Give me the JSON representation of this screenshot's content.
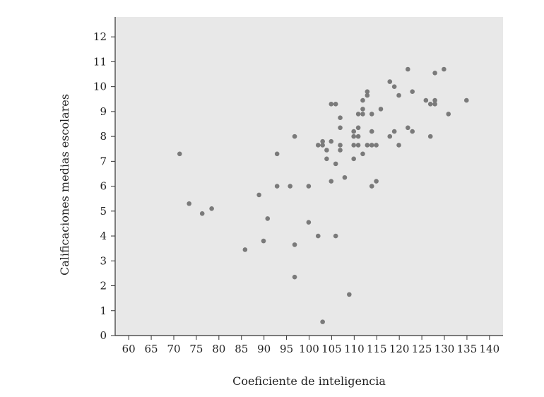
{
  "chart_data": {
    "type": "scatter",
    "title": "",
    "xlabel": "Coeficiente de inteligencia",
    "ylabel": "Calificaciones medias escolares",
    "xlim": [
      57,
      143
    ],
    "ylim": [
      0,
      12.8
    ],
    "xticks": [
      60,
      65,
      70,
      75,
      80,
      85,
      90,
      95,
      100,
      105,
      110,
      115,
      120,
      125,
      130,
      135,
      140
    ],
    "yticks": [
      0,
      1,
      2,
      3,
      4,
      5,
      6,
      7,
      8,
      9,
      10,
      11,
      12
    ],
    "grid": false,
    "legend": "none",
    "colors": {
      "plot_background": "#e8e8e8",
      "point": "#7a7a7a",
      "axis": "#333333"
    },
    "points": [
      {
        "x": 71.3,
        "y": 7.3
      },
      {
        "x": 73.4,
        "y": 5.3
      },
      {
        "x": 76.3,
        "y": 4.9
      },
      {
        "x": 78.4,
        "y": 5.1
      },
      {
        "x": 85.8,
        "y": 3.45
      },
      {
        "x": 88.9,
        "y": 5.65
      },
      {
        "x": 89.9,
        "y": 3.8
      },
      {
        "x": 90.8,
        "y": 4.7
      },
      {
        "x": 92.9,
        "y": 6.0
      },
      {
        "x": 92.9,
        "y": 7.3
      },
      {
        "x": 95.8,
        "y": 6.0
      },
      {
        "x": 96.8,
        "y": 8.0
      },
      {
        "x": 96.8,
        "y": 3.65
      },
      {
        "x": 96.8,
        "y": 2.35
      },
      {
        "x": 99.9,
        "y": 6.0
      },
      {
        "x": 99.9,
        "y": 4.55
      },
      {
        "x": 102.0,
        "y": 7.65
      },
      {
        "x": 102.0,
        "y": 4.0
      },
      {
        "x": 103.0,
        "y": 7.65
      },
      {
        "x": 103.0,
        "y": 7.8
      },
      {
        "x": 103.0,
        "y": 0.55
      },
      {
        "x": 103.9,
        "y": 7.45
      },
      {
        "x": 103.9,
        "y": 7.1
      },
      {
        "x": 104.9,
        "y": 9.3
      },
      {
        "x": 104.9,
        "y": 7.8
      },
      {
        "x": 104.9,
        "y": 6.2
      },
      {
        "x": 105.9,
        "y": 9.3
      },
      {
        "x": 105.9,
        "y": 6.9
      },
      {
        "x": 105.9,
        "y": 4.0
      },
      {
        "x": 106.9,
        "y": 8.75
      },
      {
        "x": 106.9,
        "y": 8.35
      },
      {
        "x": 106.9,
        "y": 7.65
      },
      {
        "x": 106.9,
        "y": 7.45
      },
      {
        "x": 107.9,
        "y": 6.35
      },
      {
        "x": 108.9,
        "y": 1.65
      },
      {
        "x": 109.9,
        "y": 8.2
      },
      {
        "x": 109.9,
        "y": 8.0
      },
      {
        "x": 109.9,
        "y": 7.65
      },
      {
        "x": 109.9,
        "y": 7.1
      },
      {
        "x": 110.9,
        "y": 8.9
      },
      {
        "x": 110.9,
        "y": 8.35
      },
      {
        "x": 110.9,
        "y": 8.0
      },
      {
        "x": 110.9,
        "y": 7.65
      },
      {
        "x": 111.9,
        "y": 9.45
      },
      {
        "x": 111.9,
        "y": 9.1
      },
      {
        "x": 111.9,
        "y": 8.9
      },
      {
        "x": 111.9,
        "y": 7.3
      },
      {
        "x": 112.9,
        "y": 9.8
      },
      {
        "x": 112.9,
        "y": 9.65
      },
      {
        "x": 112.9,
        "y": 7.65
      },
      {
        "x": 113.9,
        "y": 8.9
      },
      {
        "x": 113.9,
        "y": 8.2
      },
      {
        "x": 113.9,
        "y": 7.65
      },
      {
        "x": 113.9,
        "y": 6.0
      },
      {
        "x": 114.9,
        "y": 7.65
      },
      {
        "x": 114.9,
        "y": 6.2
      },
      {
        "x": 115.9,
        "y": 9.1
      },
      {
        "x": 117.9,
        "y": 10.2
      },
      {
        "x": 117.9,
        "y": 8.0
      },
      {
        "x": 118.9,
        "y": 10.0
      },
      {
        "x": 118.9,
        "y": 8.2
      },
      {
        "x": 119.9,
        "y": 9.65
      },
      {
        "x": 119.9,
        "y": 7.65
      },
      {
        "x": 121.9,
        "y": 10.7
      },
      {
        "x": 121.9,
        "y": 8.35
      },
      {
        "x": 122.9,
        "y": 9.8
      },
      {
        "x": 122.9,
        "y": 8.2
      },
      {
        "x": 125.9,
        "y": 9.45
      },
      {
        "x": 126.9,
        "y": 9.3
      },
      {
        "x": 126.9,
        "y": 8.0
      },
      {
        "x": 127.9,
        "y": 10.55
      },
      {
        "x": 127.9,
        "y": 9.45
      },
      {
        "x": 127.9,
        "y": 9.3
      },
      {
        "x": 129.9,
        "y": 10.7
      },
      {
        "x": 130.9,
        "y": 8.9
      },
      {
        "x": 134.9,
        "y": 9.45
      }
    ]
  }
}
